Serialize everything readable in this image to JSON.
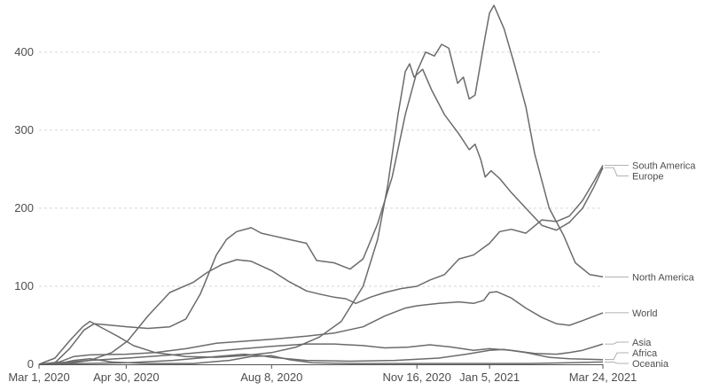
{
  "chart_data": {
    "type": "line",
    "title": "",
    "xlabel": "",
    "ylabel": "",
    "ylim": [
      0,
      460
    ],
    "yticks": [
      0,
      100,
      200,
      300,
      400
    ],
    "x_tick_labels": [
      "Mar 1, 2020",
      "Apr 30, 2020",
      "Aug 8, 2020",
      "Nov 16, 2020",
      "Jan 5, 2021",
      "Mar 24, 2021"
    ],
    "x_tick_dates": [
      "2020-03-01",
      "2020-04-30",
      "2020-08-08",
      "2020-11-16",
      "2021-01-05",
      "2021-03-24"
    ],
    "xlim": [
      "2020-03-01",
      "2021-03-24"
    ],
    "grid": true,
    "legend": "labels at right end of lines",
    "series": [
      {
        "name": "Europe",
        "points": [
          [
            "2020-03-01",
            0
          ],
          [
            "2020-03-12",
            8
          ],
          [
            "2020-03-22",
            30
          ],
          [
            "2020-03-31",
            48
          ],
          [
            "2020-04-05",
            55
          ],
          [
            "2020-04-10",
            50
          ],
          [
            "2020-04-18",
            42
          ],
          [
            "2020-04-25",
            35
          ],
          [
            "2020-05-05",
            24
          ],
          [
            "2020-05-20",
            15
          ],
          [
            "2020-06-10",
            10
          ],
          [
            "2020-07-01",
            9
          ],
          [
            "2020-07-20",
            11
          ],
          [
            "2020-08-08",
            15
          ],
          [
            "2020-08-25",
            22
          ],
          [
            "2020-09-10",
            35
          ],
          [
            "2020-09-25",
            55
          ],
          [
            "2020-10-10",
            100
          ],
          [
            "2020-10-20",
            160
          ],
          [
            "2020-10-27",
            230
          ],
          [
            "2020-11-03",
            320
          ],
          [
            "2020-11-08",
            375
          ],
          [
            "2020-11-11",
            385
          ],
          [
            "2020-11-14",
            368
          ],
          [
            "2020-11-20",
            378
          ],
          [
            "2020-11-26",
            352
          ],
          [
            "2020-12-05",
            320
          ],
          [
            "2020-12-15",
            295
          ],
          [
            "2020-12-22",
            275
          ],
          [
            "2020-12-26",
            282
          ],
          [
            "2020-12-30",
            262
          ],
          [
            "2021-01-02",
            240
          ],
          [
            "2021-01-06",
            248
          ],
          [
            "2021-01-12",
            238
          ],
          [
            "2021-01-20",
            220
          ],
          [
            "2021-01-30",
            200
          ],
          [
            "2021-02-10",
            178
          ],
          [
            "2021-02-20",
            172
          ],
          [
            "2021-03-01",
            182
          ],
          [
            "2021-03-10",
            200
          ],
          [
            "2021-03-18",
            228
          ],
          [
            "2021-03-24",
            252
          ]
        ]
      },
      {
        "name": "South America",
        "points": [
          [
            "2020-03-01",
            0
          ],
          [
            "2020-03-20",
            1
          ],
          [
            "2020-04-05",
            5
          ],
          [
            "2020-04-20",
            15
          ],
          [
            "2020-05-01",
            30
          ],
          [
            "2020-05-15",
            62
          ],
          [
            "2020-05-30",
            92
          ],
          [
            "2020-06-15",
            105
          ],
          [
            "2020-06-25",
            118
          ],
          [
            "2020-07-05",
            128
          ],
          [
            "2020-07-15",
            134
          ],
          [
            "2020-07-25",
            132
          ],
          [
            "2020-08-08",
            120
          ],
          [
            "2020-08-20",
            106
          ],
          [
            "2020-09-01",
            94
          ],
          [
            "2020-09-10",
            90
          ],
          [
            "2020-09-20",
            86
          ],
          [
            "2020-09-28",
            84
          ],
          [
            "2020-10-05",
            78
          ],
          [
            "2020-10-15",
            86
          ],
          [
            "2020-10-25",
            92
          ],
          [
            "2020-11-05",
            97
          ],
          [
            "2020-11-16",
            100
          ],
          [
            "2020-11-25",
            108
          ],
          [
            "2020-12-05",
            115
          ],
          [
            "2020-12-15",
            135
          ],
          [
            "2020-12-25",
            140
          ],
          [
            "2021-01-05",
            155
          ],
          [
            "2021-01-12",
            170
          ],
          [
            "2021-01-20",
            173
          ],
          [
            "2021-01-30",
            168
          ],
          [
            "2021-02-10",
            185
          ],
          [
            "2021-02-20",
            183
          ],
          [
            "2021-03-01",
            190
          ],
          [
            "2021-03-10",
            210
          ],
          [
            "2021-03-18",
            235
          ],
          [
            "2021-03-24",
            255
          ]
        ]
      },
      {
        "name": "North America",
        "points": [
          [
            "2020-03-01",
            0
          ],
          [
            "2020-03-12",
            2
          ],
          [
            "2020-03-22",
            20
          ],
          [
            "2020-04-01",
            44
          ],
          [
            "2020-04-08",
            52
          ],
          [
            "2020-04-20",
            50
          ],
          [
            "2020-05-01",
            48
          ],
          [
            "2020-05-15",
            46
          ],
          [
            "2020-05-30",
            48
          ],
          [
            "2020-06-10",
            58
          ],
          [
            "2020-06-20",
            90
          ],
          [
            "2020-07-01",
            140
          ],
          [
            "2020-07-08",
            160
          ],
          [
            "2020-07-15",
            170
          ],
          [
            "2020-07-25",
            175
          ],
          [
            "2020-08-01",
            168
          ],
          [
            "2020-08-08",
            165
          ],
          [
            "2020-08-20",
            160
          ],
          [
            "2020-09-01",
            155
          ],
          [
            "2020-09-08",
            133
          ],
          [
            "2020-09-20",
            130
          ],
          [
            "2020-10-01",
            122
          ],
          [
            "2020-10-10",
            135
          ],
          [
            "2020-10-20",
            180
          ],
          [
            "2020-10-30",
            240
          ],
          [
            "2020-11-08",
            320
          ],
          [
            "2020-11-16",
            375
          ],
          [
            "2020-11-22",
            400
          ],
          [
            "2020-11-28",
            395
          ],
          [
            "2020-12-03",
            410
          ],
          [
            "2020-12-08",
            405
          ],
          [
            "2020-12-14",
            360
          ],
          [
            "2020-12-18",
            368
          ],
          [
            "2020-12-22",
            340
          ],
          [
            "2020-12-26",
            345
          ],
          [
            "2021-01-02",
            420
          ],
          [
            "2021-01-05",
            450
          ],
          [
            "2021-01-08",
            470
          ],
          [
            "2021-01-15",
            430
          ],
          [
            "2021-01-22",
            385
          ],
          [
            "2021-01-30",
            330
          ],
          [
            "2021-02-05",
            270
          ],
          [
            "2021-02-15",
            200
          ],
          [
            "2021-02-25",
            165
          ],
          [
            "2021-03-05",
            130
          ],
          [
            "2021-03-15",
            115
          ],
          [
            "2021-03-24",
            112
          ]
        ]
      },
      {
        "name": "World",
        "points": [
          [
            "2020-03-01",
            0
          ],
          [
            "2020-03-15",
            3
          ],
          [
            "2020-03-25",
            10
          ],
          [
            "2020-04-05",
            12
          ],
          [
            "2020-04-30",
            13
          ],
          [
            "2020-05-20",
            15
          ],
          [
            "2020-06-10",
            20
          ],
          [
            "2020-07-01",
            27
          ],
          [
            "2020-08-08",
            32
          ],
          [
            "2020-09-01",
            36
          ],
          [
            "2020-09-20",
            40
          ],
          [
            "2020-10-10",
            48
          ],
          [
            "2020-10-25",
            62
          ],
          [
            "2020-11-08",
            72
          ],
          [
            "2020-11-16",
            75
          ],
          [
            "2020-12-01",
            78
          ],
          [
            "2020-12-15",
            80
          ],
          [
            "2020-12-25",
            78
          ],
          [
            "2021-01-01",
            82
          ],
          [
            "2021-01-05",
            92
          ],
          [
            "2021-01-10",
            93
          ],
          [
            "2021-01-20",
            85
          ],
          [
            "2021-01-30",
            72
          ],
          [
            "2021-02-10",
            60
          ],
          [
            "2021-02-20",
            52
          ],
          [
            "2021-03-01",
            50
          ],
          [
            "2021-03-10",
            56
          ],
          [
            "2021-03-24",
            66
          ]
        ]
      },
      {
        "name": "Asia",
        "points": [
          [
            "2020-03-01",
            0
          ],
          [
            "2020-03-15",
            2
          ],
          [
            "2020-04-05",
            5
          ],
          [
            "2020-05-01",
            8
          ],
          [
            "2020-06-01",
            12
          ],
          [
            "2020-07-01",
            17
          ],
          [
            "2020-08-08",
            23
          ],
          [
            "2020-09-01",
            26
          ],
          [
            "2020-09-20",
            26
          ],
          [
            "2020-10-10",
            24
          ],
          [
            "2020-10-25",
            21
          ],
          [
            "2020-11-10",
            22
          ],
          [
            "2020-11-25",
            25
          ],
          [
            "2020-12-10",
            22
          ],
          [
            "2020-12-25",
            18
          ],
          [
            "2021-01-05",
            20
          ],
          [
            "2021-01-20",
            18
          ],
          [
            "2021-02-05",
            14
          ],
          [
            "2021-02-20",
            13
          ],
          [
            "2021-03-01",
            15
          ],
          [
            "2021-03-10",
            18
          ],
          [
            "2021-03-24",
            26
          ]
        ]
      },
      {
        "name": "Africa",
        "points": [
          [
            "2020-03-01",
            0
          ],
          [
            "2020-04-01",
            1
          ],
          [
            "2020-05-01",
            2
          ],
          [
            "2020-06-01",
            5
          ],
          [
            "2020-07-01",
            10
          ],
          [
            "2020-07-20",
            13
          ],
          [
            "2020-08-01",
            11
          ],
          [
            "2020-08-08",
            9
          ],
          [
            "2020-09-01",
            5
          ],
          [
            "2020-10-01",
            4
          ],
          [
            "2020-11-01",
            5
          ],
          [
            "2020-12-01",
            8
          ],
          [
            "2020-12-20",
            13
          ],
          [
            "2021-01-05",
            18
          ],
          [
            "2021-01-15",
            19
          ],
          [
            "2021-01-30",
            15
          ],
          [
            "2021-02-15",
            9
          ],
          [
            "2021-03-01",
            7
          ],
          [
            "2021-03-24",
            6
          ]
        ]
      },
      {
        "name": "Oceania",
        "points": [
          [
            "2020-03-01",
            0
          ],
          [
            "2020-03-15",
            1
          ],
          [
            "2020-03-25",
            5
          ],
          [
            "2020-04-05",
            7
          ],
          [
            "2020-04-20",
            3
          ],
          [
            "2020-05-15",
            1
          ],
          [
            "2020-06-15",
            1
          ],
          [
            "2020-07-10",
            5
          ],
          [
            "2020-07-25",
            10
          ],
          [
            "2020-08-08",
            11
          ],
          [
            "2020-08-20",
            6
          ],
          [
            "2020-09-05",
            2
          ],
          [
            "2020-10-01",
            1
          ],
          [
            "2020-11-01",
            1
          ],
          [
            "2020-12-01",
            1
          ],
          [
            "2021-01-01",
            1
          ],
          [
            "2021-02-01",
            1
          ],
          [
            "2021-03-01",
            2
          ],
          [
            "2021-03-24",
            3
          ]
        ]
      }
    ]
  }
}
